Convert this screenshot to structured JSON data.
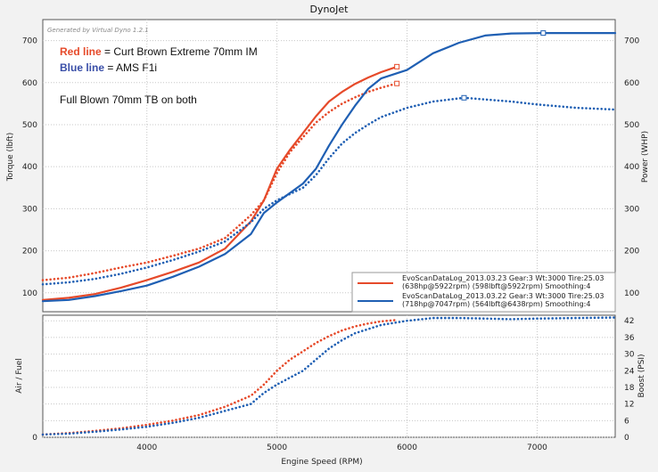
{
  "window": {
    "title": "DynoJet",
    "generator": "Generated by Virtual Dyno 1.2.1"
  },
  "annotations": {
    "red_label": "Red line",
    "red_rest": " = Curt Brown Extreme 70mm IM",
    "blue_label": "Blue line",
    "blue_rest": " = AMS F1i",
    "note": "Full Blown 70mm TB on both"
  },
  "legend": [
    {
      "line1": "EvoScanDataLog_2013.03.23 Gear:3 Wt:3000 Tire:25.03",
      "line2": "(638hp@5922rpm) (598lbft@5922rpm) Smoothing:4",
      "color": "#e64a2a"
    },
    {
      "line1": "EvoScanDataLog_2013.03.22 Gear:3 Wt:3000 Tire:25.03",
      "line2": "(718hp@7047rpm) (564lbft@6438rpm) Smoothing:4",
      "color": "#1f5fb3"
    }
  ],
  "colors": {
    "red": "#e64a2a",
    "blue": "#1f5fb3",
    "grid": "#c8c8c8",
    "plot_bg": "#ffffff"
  },
  "chart_data": [
    {
      "type": "line",
      "title": "DynoJet",
      "xlabel": "Engine Speed (RPM)",
      "ylabel": "Torque (lbft)",
      "y2label": "Power (WHP)",
      "xlim": [
        3200,
        7600
      ],
      "ylim": [
        55,
        750
      ],
      "xticks": [
        4000,
        5000,
        6000,
        7000
      ],
      "yticks": [
        100,
        200,
        300,
        400,
        500,
        600,
        700
      ],
      "grid": true,
      "legend_position": "bottom-right",
      "series": [
        {
          "name": "",
          "color": "red",
          "style": "solid",
          "axis": "Power (WHP)",
          "x": [
            3200,
            3400,
            3600,
            3800,
            4000,
            4200,
            4400,
            4600,
            4800,
            4900,
            5000,
            5100,
            5200,
            5300,
            5400,
            5500,
            5600,
            5700,
            5800,
            5922
          ],
          "y": [
            83,
            88,
            97,
            112,
            130,
            150,
            172,
            205,
            270,
            320,
            395,
            440,
            480,
            520,
            555,
            578,
            597,
            612,
            625,
            638
          ]
        },
        {
          "name": "",
          "color": "red",
          "style": "dotted",
          "axis": "Torque (lbft)",
          "x": [
            3200,
            3400,
            3600,
            3800,
            4000,
            4200,
            4400,
            4600,
            4800,
            4900,
            5000,
            5100,
            5200,
            5300,
            5400,
            5500,
            5600,
            5700,
            5800,
            5922
          ],
          "y": [
            130,
            136,
            147,
            160,
            172,
            188,
            205,
            230,
            285,
            320,
            385,
            435,
            470,
            505,
            530,
            550,
            565,
            578,
            588,
            598
          ]
        },
        {
          "name": "",
          "color": "blue",
          "style": "solid",
          "axis": "Power (WHP)",
          "x": [
            3200,
            3400,
            3600,
            3800,
            4000,
            4200,
            4400,
            4600,
            4800,
            4900,
            5000,
            5200,
            5300,
            5400,
            5500,
            5600,
            5700,
            5800,
            6000,
            6200,
            6400,
            6600,
            6800,
            7047,
            7300,
            7600
          ],
          "y": [
            80,
            83,
            92,
            104,
            117,
            138,
            162,
            192,
            240,
            290,
            315,
            360,
            395,
            450,
            500,
            545,
            585,
            610,
            630,
            670,
            695,
            712,
            717,
            718,
            718,
            718
          ]
        },
        {
          "name": "",
          "color": "blue",
          "style": "dotted",
          "axis": "Torque (lbft)",
          "x": [
            3200,
            3400,
            3600,
            3800,
            4000,
            4200,
            4400,
            4600,
            4800,
            4900,
            5000,
            5200,
            5300,
            5400,
            5500,
            5600,
            5700,
            5800,
            6000,
            6200,
            6438,
            6600,
            6800,
            7000,
            7300,
            7600
          ],
          "y": [
            120,
            125,
            133,
            145,
            160,
            178,
            198,
            222,
            268,
            300,
            320,
            350,
            380,
            420,
            455,
            480,
            500,
            518,
            540,
            555,
            564,
            560,
            555,
            548,
            540,
            536
          ]
        }
      ],
      "markers": [
        {
          "color": "red",
          "x": 5922,
          "y": 638
        },
        {
          "color": "red",
          "x": 5922,
          "y": 598
        },
        {
          "color": "blue",
          "x": 7047,
          "y": 718
        },
        {
          "color": "blue",
          "x": 6438,
          "y": 564
        }
      ]
    },
    {
      "type": "line",
      "xlabel": "Engine Speed (RPM)",
      "ylabel": "Air / Fuel",
      "y2label": "Boost (PSI)",
      "xlim": [
        3200,
        7600
      ],
      "ylim": [
        0,
        44
      ],
      "xticks": [
        4000,
        5000,
        6000,
        7000
      ],
      "yticks": [
        0,
        6,
        12,
        18,
        24,
        30,
        36,
        42
      ],
      "ylabels_left": [
        "0"
      ],
      "grid": true,
      "series": [
        {
          "name": "",
          "color": "red",
          "style": "dotted",
          "axis": "Boost (PSI)",
          "x": [
            3200,
            3400,
            3600,
            3800,
            4000,
            4200,
            4400,
            4600,
            4800,
            4900,
            5000,
            5100,
            5200,
            5300,
            5400,
            5500,
            5600,
            5700,
            5800,
            5922
          ],
          "y": [
            1,
            1.5,
            2.3,
            3.2,
            4.5,
            6,
            8,
            11,
            15,
            19,
            24,
            28,
            31,
            34,
            36.5,
            38.5,
            40,
            41,
            41.8,
            42.3
          ]
        },
        {
          "name": "",
          "color": "blue",
          "style": "dotted",
          "axis": "Boost (PSI)",
          "x": [
            3200,
            3400,
            3600,
            3800,
            4000,
            4200,
            4400,
            4600,
            4800,
            4900,
            5000,
            5200,
            5300,
            5400,
            5500,
            5600,
            5700,
            5800,
            6000,
            6200,
            6400,
            6600,
            6800,
            7000,
            7300,
            7600
          ],
          "y": [
            1,
            1.3,
            2,
            2.8,
            3.8,
            5.2,
            7,
            9.5,
            12,
            16,
            19,
            24,
            28,
            32,
            35,
            37.5,
            39,
            40.5,
            42,
            43,
            43,
            42.8,
            42.6,
            42.8,
            43,
            43.2
          ]
        }
      ]
    }
  ]
}
